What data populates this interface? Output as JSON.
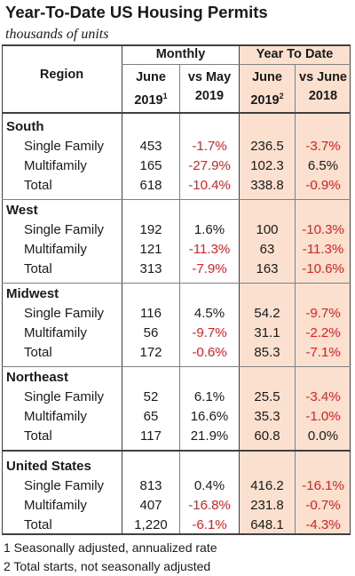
{
  "title": "Year-To-Date US Housing Permits",
  "subtitle": "thousands of units",
  "header": {
    "region": "Region",
    "monthly": "Monthly",
    "ytd": "Year To Date",
    "june_line1": "June",
    "june2019": "2019",
    "sup1": "1",
    "vsmay_line1": "vs May",
    "vsmay_line2": "2019",
    "ytd_june_line1": "June",
    "ytd_june2019": "2019",
    "sup2": "2",
    "vsjune_line1": "vs June",
    "vsjune_line2": "2018"
  },
  "sections": [
    {
      "region": "South",
      "rows": [
        {
          "label": "Single Family",
          "june": "453",
          "vs_may": "-1.7%",
          "ytd": "236.5",
          "vs_june": "-3.7%"
        },
        {
          "label": "Multifamily",
          "june": "165",
          "vs_may": "-27.9%",
          "ytd": "102.3",
          "vs_june": "6.5%"
        },
        {
          "label": "Total",
          "june": "618",
          "vs_may": "-10.4%",
          "ytd": "338.8",
          "vs_june": "-0.9%"
        }
      ]
    },
    {
      "region": "West",
      "rows": [
        {
          "label": "Single Family",
          "june": "192",
          "vs_may": "1.6%",
          "ytd": "100",
          "vs_june": "-10.3%"
        },
        {
          "label": "Multifamily",
          "june": "121",
          "vs_may": "-11.3%",
          "ytd": "63",
          "vs_june": "-11.3%"
        },
        {
          "label": "Total",
          "june": "313",
          "vs_may": "-7.9%",
          "ytd": "163",
          "vs_june": "-10.6%"
        }
      ]
    },
    {
      "region": "Midwest",
      "rows": [
        {
          "label": "Single Family",
          "june": "116",
          "vs_may": "4.5%",
          "ytd": "54.2",
          "vs_june": "-9.7%"
        },
        {
          "label": "Multifamily",
          "june": "56",
          "vs_may": "-9.7%",
          "ytd": "31.1",
          "vs_june": "-2.2%"
        },
        {
          "label": "Total",
          "june": "172",
          "vs_may": "-0.6%",
          "ytd": "85.3",
          "vs_june": "-7.1%"
        }
      ]
    },
    {
      "region": "Northeast",
      "rows": [
        {
          "label": "Single Family",
          "june": "52",
          "vs_may": "6.1%",
          "ytd": "25.5",
          "vs_june": "-3.4%"
        },
        {
          "label": "Multifamily",
          "june": "65",
          "vs_may": "16.6%",
          "ytd": "35.3",
          "vs_june": "-1.0%"
        },
        {
          "label": "Total",
          "june": "117",
          "vs_may": "21.9%",
          "ytd": "60.8",
          "vs_june": "0.0%"
        }
      ]
    },
    {
      "region": "United States",
      "rows": [
        {
          "label": "Single Family",
          "june": "813",
          "vs_may": "0.4%",
          "ytd": "416.2",
          "vs_june": "-16.1%"
        },
        {
          "label": "Multifamily",
          "june": "407",
          "vs_may": "-16.8%",
          "ytd": "231.8",
          "vs_june": "-0.7%"
        },
        {
          "label": "Total",
          "june": "1,220",
          "vs_may": "-6.1%",
          "ytd": "648.1",
          "vs_june": "-4.3%"
        }
      ]
    }
  ],
  "footnotes": [
    "1 Seasonally adjusted, annualized rate",
    "2 Total starts, not seasonally adjusted"
  ],
  "colors": {
    "negative": "#e02020",
    "ytd_background": "#fbe0cf",
    "text": "#1a1a1a"
  }
}
